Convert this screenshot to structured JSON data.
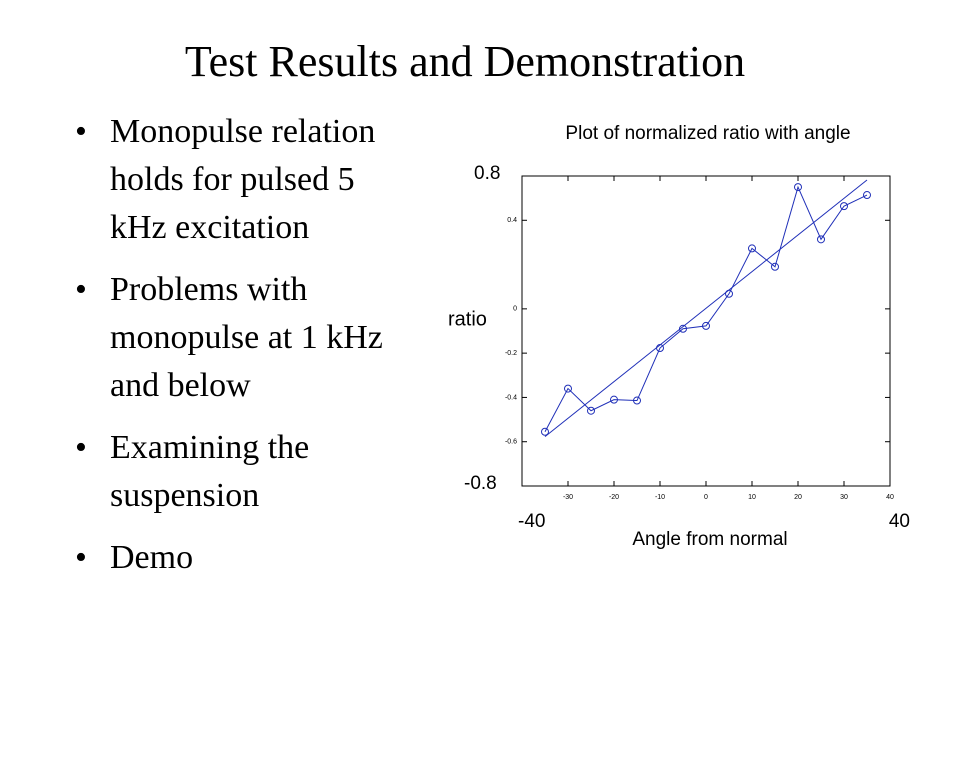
{
  "title": "Test Results and Demonstration",
  "bullets": [
    [
      "Monopulse relation",
      "holds for pulsed 5",
      "kHz excitation"
    ],
    [
      "Problems with",
      "monopulse at 1 kHz",
      "and below"
    ],
    [
      "Examining the",
      "suspension"
    ],
    [
      "Demo"
    ]
  ],
  "chart_data": {
    "type": "line",
    "title": "Plot of normalized ratio with angle",
    "x_label": "Angle from normal",
    "y_label": "ratio",
    "annotations": [
      "0.8",
      "-0.8",
      "-40",
      "40"
    ],
    "x": [
      -35,
      -30,
      -25,
      -20,
      -15,
      -10,
      -5,
      0,
      5,
      10,
      15,
      20,
      25,
      30,
      35
    ],
    "series": [
      {
        "color": "#1f2fb8",
        "marker": "circle",
        "values": [
          -0.555,
          -0.36,
          -0.46,
          -0.41,
          -0.414,
          -0.177,
          -0.09,
          -0.077,
          0.068,
          0.273,
          0.19,
          0.55,
          0.314,
          0.464,
          0.514
        ]
      },
      {
        "color": "#1f2fb8",
        "x": [
          -35,
          35
        ],
        "values": [
          -0.577,
          0.582
        ]
      }
    ],
    "xlim": [
      -40,
      40
    ],
    "ylim": [
      -0.8,
      0.6
    ],
    "xticks": [
      -30,
      -20,
      -10,
      0,
      10,
      20,
      30,
      40
    ],
    "yticks": [
      0.4,
      0,
      -0.2,
      -0.4,
      -0.6
    ],
    "grid": false
  }
}
